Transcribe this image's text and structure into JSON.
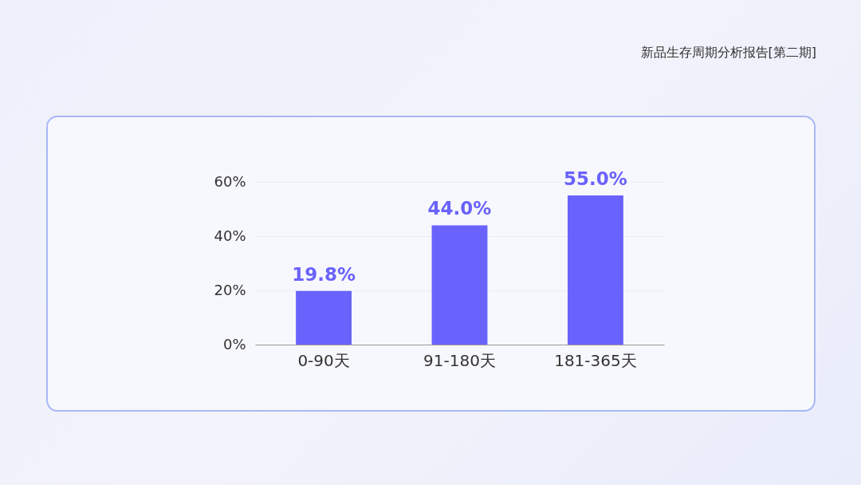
{
  "chart_data": {
    "type": "bar",
    "title": "新品生存周期分析报告[第二期]",
    "categories": [
      "0-90天",
      "91-180天",
      "181-365天"
    ],
    "values": [
      19.8,
      44.0,
      55.0
    ],
    "value_labels": [
      "19.8%",
      "44.0%",
      "55.0%"
    ],
    "color": "#6a62fc",
    "ylim": [
      0,
      60
    ],
    "yticks": [
      {
        "value": 0,
        "label": "0%"
      },
      {
        "value": 20,
        "label": "20%"
      },
      {
        "value": 40,
        "label": "40%"
      },
      {
        "value": 60,
        "label": "60%"
      }
    ],
    "grid": "y"
  }
}
